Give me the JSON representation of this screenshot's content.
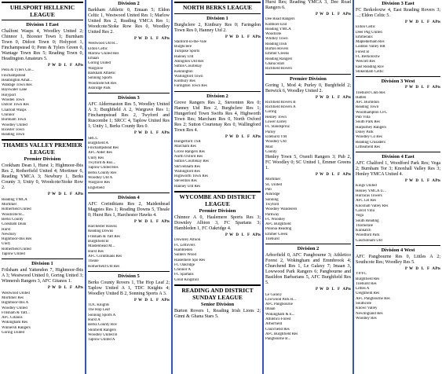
{
  "col1": {
    "league": "UHLSPORT HELLENIC LEAGUE",
    "div1east": "Division 1 East",
    "res1": "Chalfont Wasps 4, Woodley United 2; Chinnor 1, Bicester Town 1; Burnham Town 0, Didcot Town 0; Holyport 1, Finchampstead 0; Penn & Tylers Green 0, Wantage Town Res 5; Reading Town 0, Headington Amateurs 5.",
    "hdr": [
      "P",
      "W",
      "D",
      "L",
      "F",
      "A",
      "Pts"
    ],
    "teams": [
      "Penn & Tylers Gre...",
      "Finchampstead",
      "Headington Amat...",
      "Wantage Town Res",
      "Bayswater Lane",
      "Holyport",
      "Wooden Town",
      "Didcot Town Res",
      "Chalfont Wasps",
      "Chinnor",
      "Burnham Town",
      "Woodley United",
      "Bicester Town",
      "Reading Town"
    ],
    "tv_league": "THAMES VALLEY PREMIER LEAGUE",
    "premdiv": "Premier Division",
    "res2": "Cookham Dean 1, Hurst 1; Highmoor-Ibis Res 2, Rotherfield United 4; Mortimer 6, Reading YMCA 3; Newbury 1, Berks County 3; Unity 0, Woodcote/Stoke Row 2.",
    "teams2": [
      "Reading YMCA",
      "Mortimer",
      "Rotherfield United",
      "Woodcote/St...",
      "Berks County",
      "Cookham Dean",
      "Hurst",
      "Newbury",
      "Highmoor-Ibis Res",
      "Unity",
      "Rotherfield United",
      "Taplow United"
    ],
    "div1": "Division 1",
    "res3": "Frilsham and Yattendon 7, Highmoor-Ibis A 3; Westwood United 0, Goring United 3; Winnersh Rangers 3, AFC Gitanos 1.",
    "teams3": [
      "Westwood United",
      "Mortimer Res",
      "Highmoor-Ibis A",
      "Woodley United",
      "Frilsham & Yatt...",
      "AFC Gitanos",
      "Wokingham Res",
      "Winnersh Rangers",
      "Goring United"
    ]
  },
  "col2": {
    "div2": "Division 2",
    "res1": "Barkham Athletic 0, Emaan 5; Eldon Celtic 1, Westwood United Res 1; Marlow United Res 2, Reading YMCA Res 1; Woodcote/Stoke Row Res 0, Woodley United Res 2.",
    "teams": [
      "Westwood Utd R...",
      "Eldon Celtic",
      "Marlow United Res",
      "Emaan",
      "Goring United",
      "Wargrave",
      "Barkham Athletic",
      "Sonning Sports",
      "Woodcote/SR Res",
      "Ashridge Park"
    ],
    "div3": "Division 3",
    "res2": "AFC Aldermaston Res 5, Woodley United A 3; Burghfield A 2, Wargrave Res 1; Finchampstead Res 2, Twyford and Ruscombe 1; SRCC 4, Taplow United Res 1; Unity 1, Berks County Res 0.",
    "teams2": [
      "SRCC",
      "Burghfield A",
      "Finchampstead Res",
      "AFC Alder Res",
      "Unity Res",
      "Twyford & Rus...",
      "Taplow United Res",
      "Berks County Res",
      "Woodley Utd A",
      "Wargrave Res",
      "Englefield"
    ],
    "div4": "Division 4",
    "res3": "AFC Corinthians Res 2, Maidenhead Magpies Res 1; Reading Downs 5, Theale 0; Hurst Res 1, Harchester Hawks 4.",
    "teams3": [
      "Harchester Hawks",
      "Reading Downs",
      "Frilsham & Yatt Res",
      "Burghfield B",
      "Maidenhead M...",
      "Hurst Res",
      "AFC Corinthians Res",
      "Theale",
      "Rotherfield Utd Res"
    ],
    "div5": "Division 5",
    "res4": "Berks County Rovers 1, The Hop Leaf 2; Taplow United A 1, TDC Knights 4; Woodley United B 2, Sonning Sports A 3.",
    "teams4": [
      "TDC Knights",
      "The Hop Leaf",
      "Sonning Sports A",
      "Hurst A",
      "Berks County Rov",
      "Shinfield Rangers",
      "Woodley United B",
      "Taplow United A"
    ]
  },
  "col3": {
    "league": "NORTH BERKS LEAGUE",
    "div1": "Division 1",
    "res1": "Burghclere 2, Kintbury Res 0; Faringdon Town Res 0, Hanney Utd 2.",
    "teams": [
      "Stanford-in-the-Vale",
      "Burghclere",
      "Turnpike Sports",
      "Hanney Utd",
      "Abingdon Utd Res",
      "Sutton Courtenay",
      "Kennington",
      "Wallingford Town",
      "Kintbury Res",
      "Faringdon Town Res"
    ],
    "div2": "Division 2",
    "res2": "Grove Rangers Res 2, Steventon Res 0; Hanney Utd Res 2, Burghclere Res 1; Hungerford Town Swifts Res 4, Highworth Town Res; Marcham Res 0, North Oxford Res 2; Sutton Courtenay Res 0, Wallingford Town Res 4.",
    "teams2": [
      "Hungerford TSR",
      "Marcham Res",
      "Grove Rangers Res",
      "North Oxford Res",
      "Sutton Courtenay Res",
      "Shrivenham Res",
      "Wallingford Res",
      "Highworth Town Res",
      "Steventon Res",
      "Hanney Utd Res"
    ],
    "wyc": "WYCOMBE AND DISTRICT LEAGUE",
    "premdiv": "Premier Division",
    "res3": "Chinnor A 0, Haslemere Sports Res 3; Downley Albion 3, FC Spartans 3; Hambleden 1, FC Oakridge 4.",
    "teams3": [
      "Downley Albion",
      "FC Leftovers",
      "Hambleden",
      "Sunters Wood",
      "Haslemere Spo Res",
      "FC Oakridge",
      "Chinnor A",
      "FC Spartans",
      "Great Kingshill"
    ],
    "rdg": "READING AND DISTRICT SUNDAY LEAGUE",
    "sen": "Senior Division",
    "res4": "Burton Rovers 1, Reading Irish Lions 2; Ginni & Ghana Stars 5."
  },
  "col4": {
    "res0": "Hurst Res; Reading YMCA 3, Dee Road Rangers 6.",
    "teams0": [
      "Dee Road Rangers",
      "Kidmore End",
      "Reading YMCA",
      "Woodcote",
      "Whitley Town",
      "Reading Irish",
      "Burton Rovers",
      "Emmer Greens",
      "Reading Rangers",
      "Ghana Stars",
      "Richfield Rovers"
    ],
    "premdiv": "Premier Division",
    "res1": "Goring 1, Mod 4; Purley 0, Burghfield 2; Berwick 6, Woodley United 2.",
    "teams1": [
      "Richfield Rovers B",
      "Richfield Rovers A",
      "Goring",
      "Henley Town",
      "Lower Earley",
      "FC Standsprinz",
      "Purley",
      "Ellehurst YM",
      "Woodley Utd",
      "Mod",
      "County"
    ],
    "res2": "Henley Town 5, Oxenfi Rangers 3; Pub 2, FC Woodley 0; SC United 1, Emmer Greens 1.",
    "teams2": [
      "Mortimer",
      "SC United",
      "Pub",
      "Ashridge",
      "Sonning",
      "Twyford",
      "Woodley Wanderers",
      "Parkway",
      "FC Woodley",
      "AFC Burghfield",
      "Polonia Reading",
      "Emmer Green",
      "Tilehurst"
    ],
    "div2": "Division 2",
    "res3": "Arborfield 0, AFC Pangbourne 3; Athletico Forest 2, Wokingham and Emmbrook 4; Churchend Res 1, Le Galaxy 7; Imaan 3, Lowwood Park Rangers 6; Pangbourne and Basildon Barbarians 5, AFC Burghfield Res 5.",
    "teams3": [
      "Le Galaxy",
      "Lowwood Park R...",
      "AFC Pangbourne",
      "Imaan",
      "Wokingham & E...",
      "Athletico Forest",
      "Arborfield",
      "Churchend Res",
      "AFC Burghfield Res",
      "Pangbourne B..."
    ]
  },
  "col5": {
    "div3east": "Division 3 East",
    "res1": "FC Berkoloxtw 4, East Reading Rovers 3; ...; Eldon Celtic 5.",
    "teams1": [
      "Eldon Celtic",
      "Deer Pkg United",
      "Emmeranx",
      "Maplederham Res",
      "Loddon Valley HR",
      "Forest B",
      "FC Berkoloxtw",
      "Wescott Res",
      "East Reading Rov",
      "Stokenham Celtic"
    ],
    "div3west": "Division 3 West",
    "teams2": [
      "Tilehurst Club Res",
      "Hatten",
      "AFC Burhldon",
      "Reading Town",
      "Woollhampton CFC",
      "Pub Villa",
      "South Park Res",
      "Harpurhey Rangers",
      "Doley Park",
      "Woodley Co Res",
      "Reading Crusaders",
      "Littleafield Res"
    ],
    "div4east": "Division 4 East",
    "res3": "AFC Chalford 1, Woodford Park Res; Vega 2; Burnham Tor 3; Knoxhall Valley Res 3; Henley YMCA United 4.",
    "teams3": [
      "Kings United",
      "Henley YMCA U...",
      "Hurracas Towers",
      "AFC LR Res",
      "Knoxhall Valley Res",
      "Calcot Villa",
      "Vega",
      "South Reading",
      "Thornerale",
      "Kunkatch",
      "Woodford Park",
      "Gascholnam Utd"
    ],
    "div4west": "Division 4 West",
    "res4": "AFC Pangbourne Res 0, Littles A 2; Southcote Res; Woodley Res 5.",
    "teams4": [
      "YP/FC",
      "Burghfield Res",
      "Tilehurst Res",
      "Littles A",
      "Ueighfield Res",
      "AFC Pangbourne Res",
      "Southcote",
      "Knowl Valley",
      "Newlingland Res",
      "Woodley Res"
    ]
  }
}
